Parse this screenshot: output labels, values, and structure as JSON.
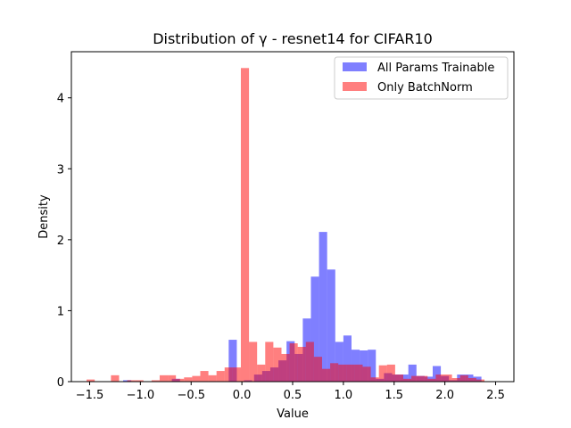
{
  "chart_data": {
    "type": "bar",
    "title": "Distribution of γ - resnet14 for CIFAR10",
    "xlabel": "Value",
    "ylabel": "Density",
    "xlim": [
      -1.68,
      2.68
    ],
    "ylim": [
      0,
      4.65
    ],
    "xticks": [
      -1.5,
      -1.0,
      -0.5,
      0.0,
      0.5,
      1.0,
      1.5,
      2.0,
      2.5
    ],
    "xtick_labels": [
      "−1.5",
      "−1.0",
      "−0.5",
      "0.0",
      "0.5",
      "1.0",
      "1.5",
      "2.0",
      "2.5"
    ],
    "yticks": [
      0,
      1,
      2,
      3,
      4
    ],
    "ytick_labels": [
      "0",
      "1",
      "2",
      "3",
      "4"
    ],
    "grid": false,
    "legend_position": "top-right",
    "series": [
      {
        "name": "All Params Trainable",
        "color": "#0000ff",
        "opacity": 0.5,
        "bin_width": 0.08,
        "bins": [
          [
            -1.13,
            0.02
          ],
          [
            -0.65,
            0.04
          ],
          [
            -0.09,
            0.59
          ],
          [
            0.06,
            0.02
          ],
          [
            0.16,
            0.1
          ],
          [
            0.24,
            0.15
          ],
          [
            0.32,
            0.2
          ],
          [
            0.4,
            0.3
          ],
          [
            0.48,
            0.57
          ],
          [
            0.56,
            0.39
          ],
          [
            0.64,
            0.89
          ],
          [
            0.72,
            1.48
          ],
          [
            0.8,
            2.11
          ],
          [
            0.88,
            1.58
          ],
          [
            0.96,
            0.56
          ],
          [
            1.04,
            0.65
          ],
          [
            1.12,
            0.45
          ],
          [
            1.2,
            0.44
          ],
          [
            1.28,
            0.45
          ],
          [
            1.36,
            0.04
          ],
          [
            1.44,
            0.12
          ],
          [
            1.52,
            0.1
          ],
          [
            1.6,
            0.1
          ],
          [
            1.68,
            0.24
          ],
          [
            1.76,
            0.08
          ],
          [
            1.84,
            0.07
          ],
          [
            1.92,
            0.22
          ],
          [
            2.0,
            0.08
          ],
          [
            2.08,
            0.02
          ],
          [
            2.16,
            0.1
          ],
          [
            2.24,
            0.1
          ],
          [
            2.32,
            0.07
          ]
        ]
      },
      {
        "name": "Only BatchNorm",
        "color": "#ff0000",
        "opacity": 0.5,
        "bin_width": 0.08,
        "bins": [
          [
            -1.49,
            0.03
          ],
          [
            -1.25,
            0.09
          ],
          [
            -1.09,
            0.02
          ],
          [
            -1.01,
            0.02
          ],
          [
            -0.85,
            0.02
          ],
          [
            -0.77,
            0.09
          ],
          [
            -0.69,
            0.09
          ],
          [
            -0.61,
            0.04
          ],
          [
            -0.53,
            0.06
          ],
          [
            -0.45,
            0.08
          ],
          [
            -0.37,
            0.15
          ],
          [
            -0.29,
            0.09
          ],
          [
            -0.21,
            0.15
          ],
          [
            -0.13,
            0.2
          ],
          [
            -0.05,
            0.2
          ],
          [
            0.03,
            4.42
          ],
          [
            0.11,
            0.56
          ],
          [
            0.19,
            0.24
          ],
          [
            0.27,
            0.56
          ],
          [
            0.35,
            0.48
          ],
          [
            0.43,
            0.39
          ],
          [
            0.51,
            0.54
          ],
          [
            0.59,
            0.49
          ],
          [
            0.67,
            0.56
          ],
          [
            0.75,
            0.35
          ],
          [
            0.83,
            0.18
          ],
          [
            0.91,
            0.26
          ],
          [
            0.99,
            0.24
          ],
          [
            1.07,
            0.24
          ],
          [
            1.15,
            0.24
          ],
          [
            1.23,
            0.21
          ],
          [
            1.31,
            0.06
          ],
          [
            1.39,
            0.23
          ],
          [
            1.47,
            0.24
          ],
          [
            1.55,
            0.1
          ],
          [
            1.63,
            0.04
          ],
          [
            1.71,
            0.08
          ],
          [
            1.79,
            0.08
          ],
          [
            1.87,
            0.04
          ],
          [
            1.95,
            0.1
          ],
          [
            2.03,
            0.1
          ],
          [
            2.11,
            0.05
          ],
          [
            2.19,
            0.09
          ],
          [
            2.27,
            0.05
          ],
          [
            2.35,
            0.03
          ]
        ]
      }
    ]
  }
}
